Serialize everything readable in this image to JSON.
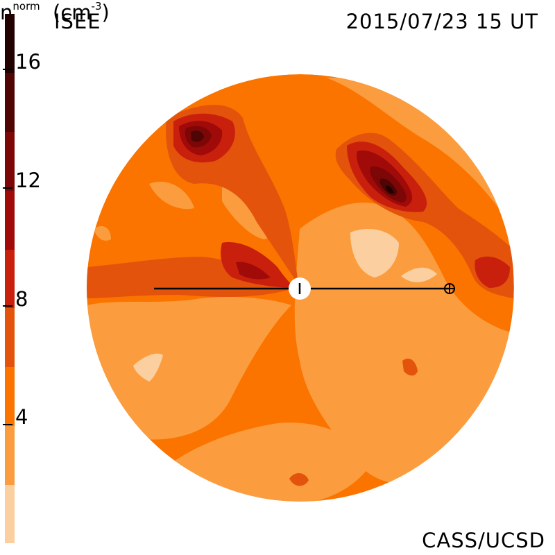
{
  "header": {
    "observatory": "ISEE",
    "timestamp": "2015/07/23 15 UT"
  },
  "footer": {
    "credit": "CASS/UCSD",
    "quantity_base": "n",
    "quantity_sup": "norm",
    "unit_text": "(cm",
    "unit_sup": "-3",
    "unit_close": ")"
  },
  "colorbar": {
    "ticks": [
      "4",
      "8",
      "12",
      "16"
    ],
    "levels": [
      {
        "min": 0,
        "max": 2,
        "color": "#fbcfa0"
      },
      {
        "min": 2,
        "max": 4,
        "color": "#fb9d3e"
      },
      {
        "min": 4,
        "max": 6,
        "color": "#fb7400"
      },
      {
        "min": 6,
        "max": 8,
        "color": "#e3530c"
      },
      {
        "min": 8,
        "max": 10,
        "color": "#c8200d"
      },
      {
        "min": 10,
        "max": 12,
        "color": "#a00a08"
      },
      {
        "min": 12,
        "max": 14,
        "color": "#7d0606"
      },
      {
        "min": 14,
        "max": 16,
        "color": "#4e0504"
      },
      {
        "min": 16,
        "max": 18,
        "color": "#220101"
      }
    ]
  },
  "map": {
    "background_level_color": "#fb7400",
    "sun_marker": "sun-icon",
    "earth_marker": "earth-icon"
  }
}
